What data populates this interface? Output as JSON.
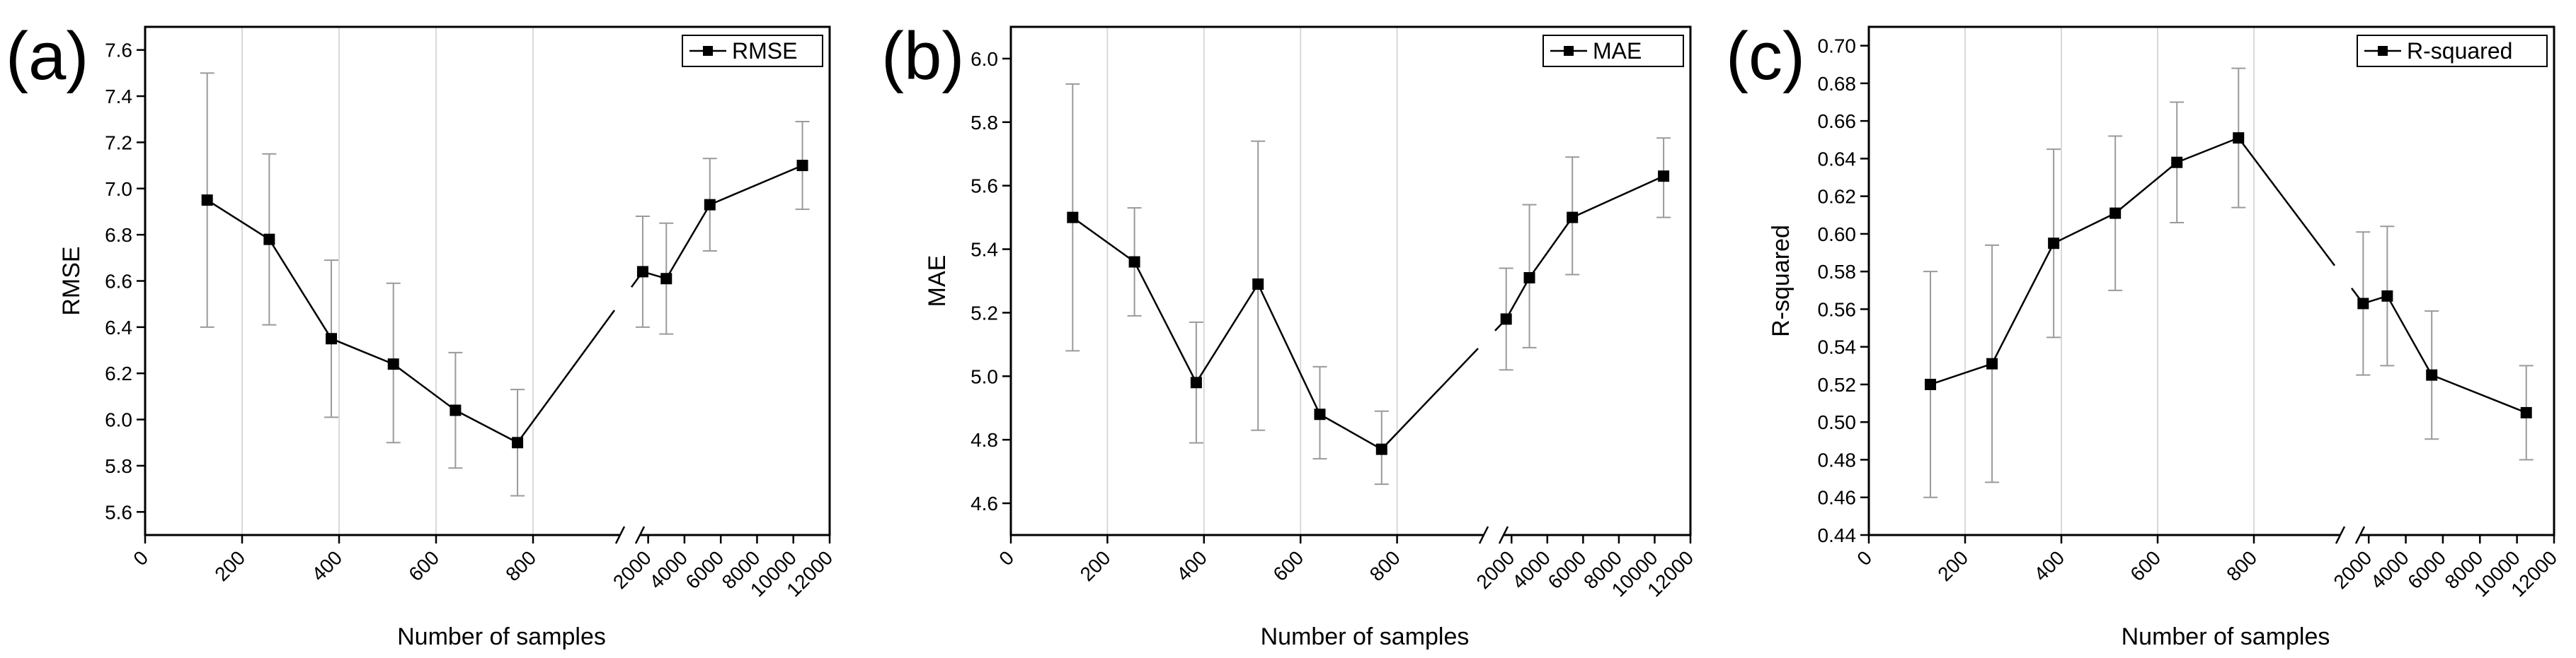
{
  "chart_data": [
    {
      "panel_label": "(a)",
      "type": "line",
      "ylabel": "RMSE",
      "xlabel": "Number of samples",
      "legend": "RMSE",
      "legend_position": "top-right",
      "grid": "vertical",
      "x_axis_break": true,
      "ylim": [
        5.5,
        7.7
      ],
      "yticks": [
        5.6,
        5.8,
        6.0,
        6.2,
        6.4,
        6.6,
        6.8,
        7.0,
        7.2,
        7.4,
        7.6
      ],
      "ytick_labels": [
        "5.6",
        "5.8",
        "6.0",
        "6.2",
        "6.4",
        "6.6",
        "6.8",
        "7.0",
        "7.2",
        "7.4",
        "7.6"
      ],
      "x_left_range": [
        0,
        1000
      ],
      "x_left_ticks": [
        0,
        200,
        400,
        600,
        800
      ],
      "x_left_tick_labels": [
        "0",
        "200",
        "400",
        "600",
        "800"
      ],
      "x_right_range": [
        1000,
        12000
      ],
      "x_right_ticks": [
        2000,
        4000,
        6000,
        8000,
        10000,
        12000
      ],
      "x_right_tick_labels": [
        "2000",
        "4000",
        "6000",
        "8000",
        "10000",
        "12000"
      ],
      "series": [
        {
          "name": "RMSE",
          "x": [
            128,
            256,
            384,
            512,
            640,
            768,
            1700,
            3000,
            5400,
            10500
          ],
          "y": [
            6.95,
            6.78,
            6.35,
            6.24,
            6.04,
            5.9,
            6.64,
            6.61,
            6.93,
            7.1
          ],
          "err_low": [
            6.4,
            6.41,
            6.01,
            5.9,
            5.79,
            5.67,
            6.4,
            6.37,
            6.73,
            6.91
          ],
          "err_high": [
            7.5,
            7.15,
            6.69,
            6.59,
            6.29,
            6.13,
            6.88,
            6.85,
            7.13,
            7.29
          ]
        }
      ]
    },
    {
      "panel_label": "(b)",
      "type": "line",
      "ylabel": "MAE",
      "xlabel": "Number of samples",
      "legend": "MAE",
      "legend_position": "top-right",
      "grid": "vertical",
      "x_axis_break": true,
      "ylim": [
        4.5,
        6.1
      ],
      "yticks": [
        4.6,
        4.8,
        5.0,
        5.2,
        5.4,
        5.6,
        5.8,
        6.0
      ],
      "ytick_labels": [
        "4.6",
        "4.8",
        "5.0",
        "5.2",
        "5.4",
        "5.6",
        "5.8",
        "6.0"
      ],
      "x_left_range": [
        0,
        1000
      ],
      "x_left_ticks": [
        0,
        200,
        400,
        600,
        800
      ],
      "x_left_tick_labels": [
        "0",
        "200",
        "400",
        "600",
        "800"
      ],
      "x_right_range": [
        1000,
        12000
      ],
      "x_right_ticks": [
        2000,
        4000,
        6000,
        8000,
        10000,
        12000
      ],
      "x_right_tick_labels": [
        "2000",
        "4000",
        "6000",
        "8000",
        "10000",
        "12000"
      ],
      "series": [
        {
          "name": "MAE",
          "x": [
            128,
            256,
            384,
            512,
            640,
            768,
            1700,
            3000,
            5400,
            10500
          ],
          "y": [
            5.5,
            5.36,
            4.98,
            5.29,
            4.88,
            4.77,
            5.18,
            5.31,
            5.5,
            5.63
          ],
          "err_low": [
            5.08,
            5.19,
            4.79,
            4.83,
            4.74,
            4.66,
            5.02,
            5.09,
            5.32,
            5.5
          ],
          "err_high": [
            5.92,
            5.53,
            5.17,
            5.74,
            5.03,
            4.89,
            5.34,
            5.54,
            5.69,
            5.75
          ]
        }
      ]
    },
    {
      "panel_label": "(c)",
      "type": "line",
      "ylabel": "R-squared",
      "xlabel": "Number of samples",
      "legend": "R-squared",
      "legend_position": "top-right",
      "grid": "vertical",
      "x_axis_break": true,
      "ylim": [
        0.44,
        0.71
      ],
      "yticks": [
        0.44,
        0.46,
        0.48,
        0.5,
        0.52,
        0.54,
        0.56,
        0.58,
        0.6,
        0.62,
        0.64,
        0.66,
        0.68,
        0.7
      ],
      "ytick_labels": [
        "0.44",
        "0.46",
        "0.48",
        "0.50",
        "0.52",
        "0.54",
        "0.56",
        "0.58",
        "0.60",
        "0.62",
        "0.64",
        "0.66",
        "0.68",
        "0.70"
      ],
      "x_left_range": [
        0,
        1000
      ],
      "x_left_ticks": [
        0,
        200,
        400,
        600,
        800
      ],
      "x_left_tick_labels": [
        "0",
        "200",
        "400",
        "600",
        "800"
      ],
      "x_right_range": [
        1000,
        12000
      ],
      "x_right_ticks": [
        2000,
        4000,
        6000,
        8000,
        10000,
        12000
      ],
      "x_right_tick_labels": [
        "2000",
        "4000",
        "6000",
        "8000",
        "10000",
        "12000"
      ],
      "series": [
        {
          "name": "R-squared",
          "x": [
            128,
            256,
            384,
            512,
            640,
            768,
            1700,
            3000,
            5400,
            10500
          ],
          "y": [
            0.52,
            0.531,
            0.595,
            0.611,
            0.638,
            0.651,
            0.563,
            0.567,
            0.525,
            0.505
          ],
          "err_low": [
            0.46,
            0.468,
            0.545,
            0.57,
            0.606,
            0.614,
            0.525,
            0.53,
            0.491,
            0.48
          ],
          "err_high": [
            0.58,
            0.594,
            0.645,
            0.652,
            0.67,
            0.688,
            0.601,
            0.604,
            0.559,
            0.53
          ]
        }
      ]
    }
  ]
}
